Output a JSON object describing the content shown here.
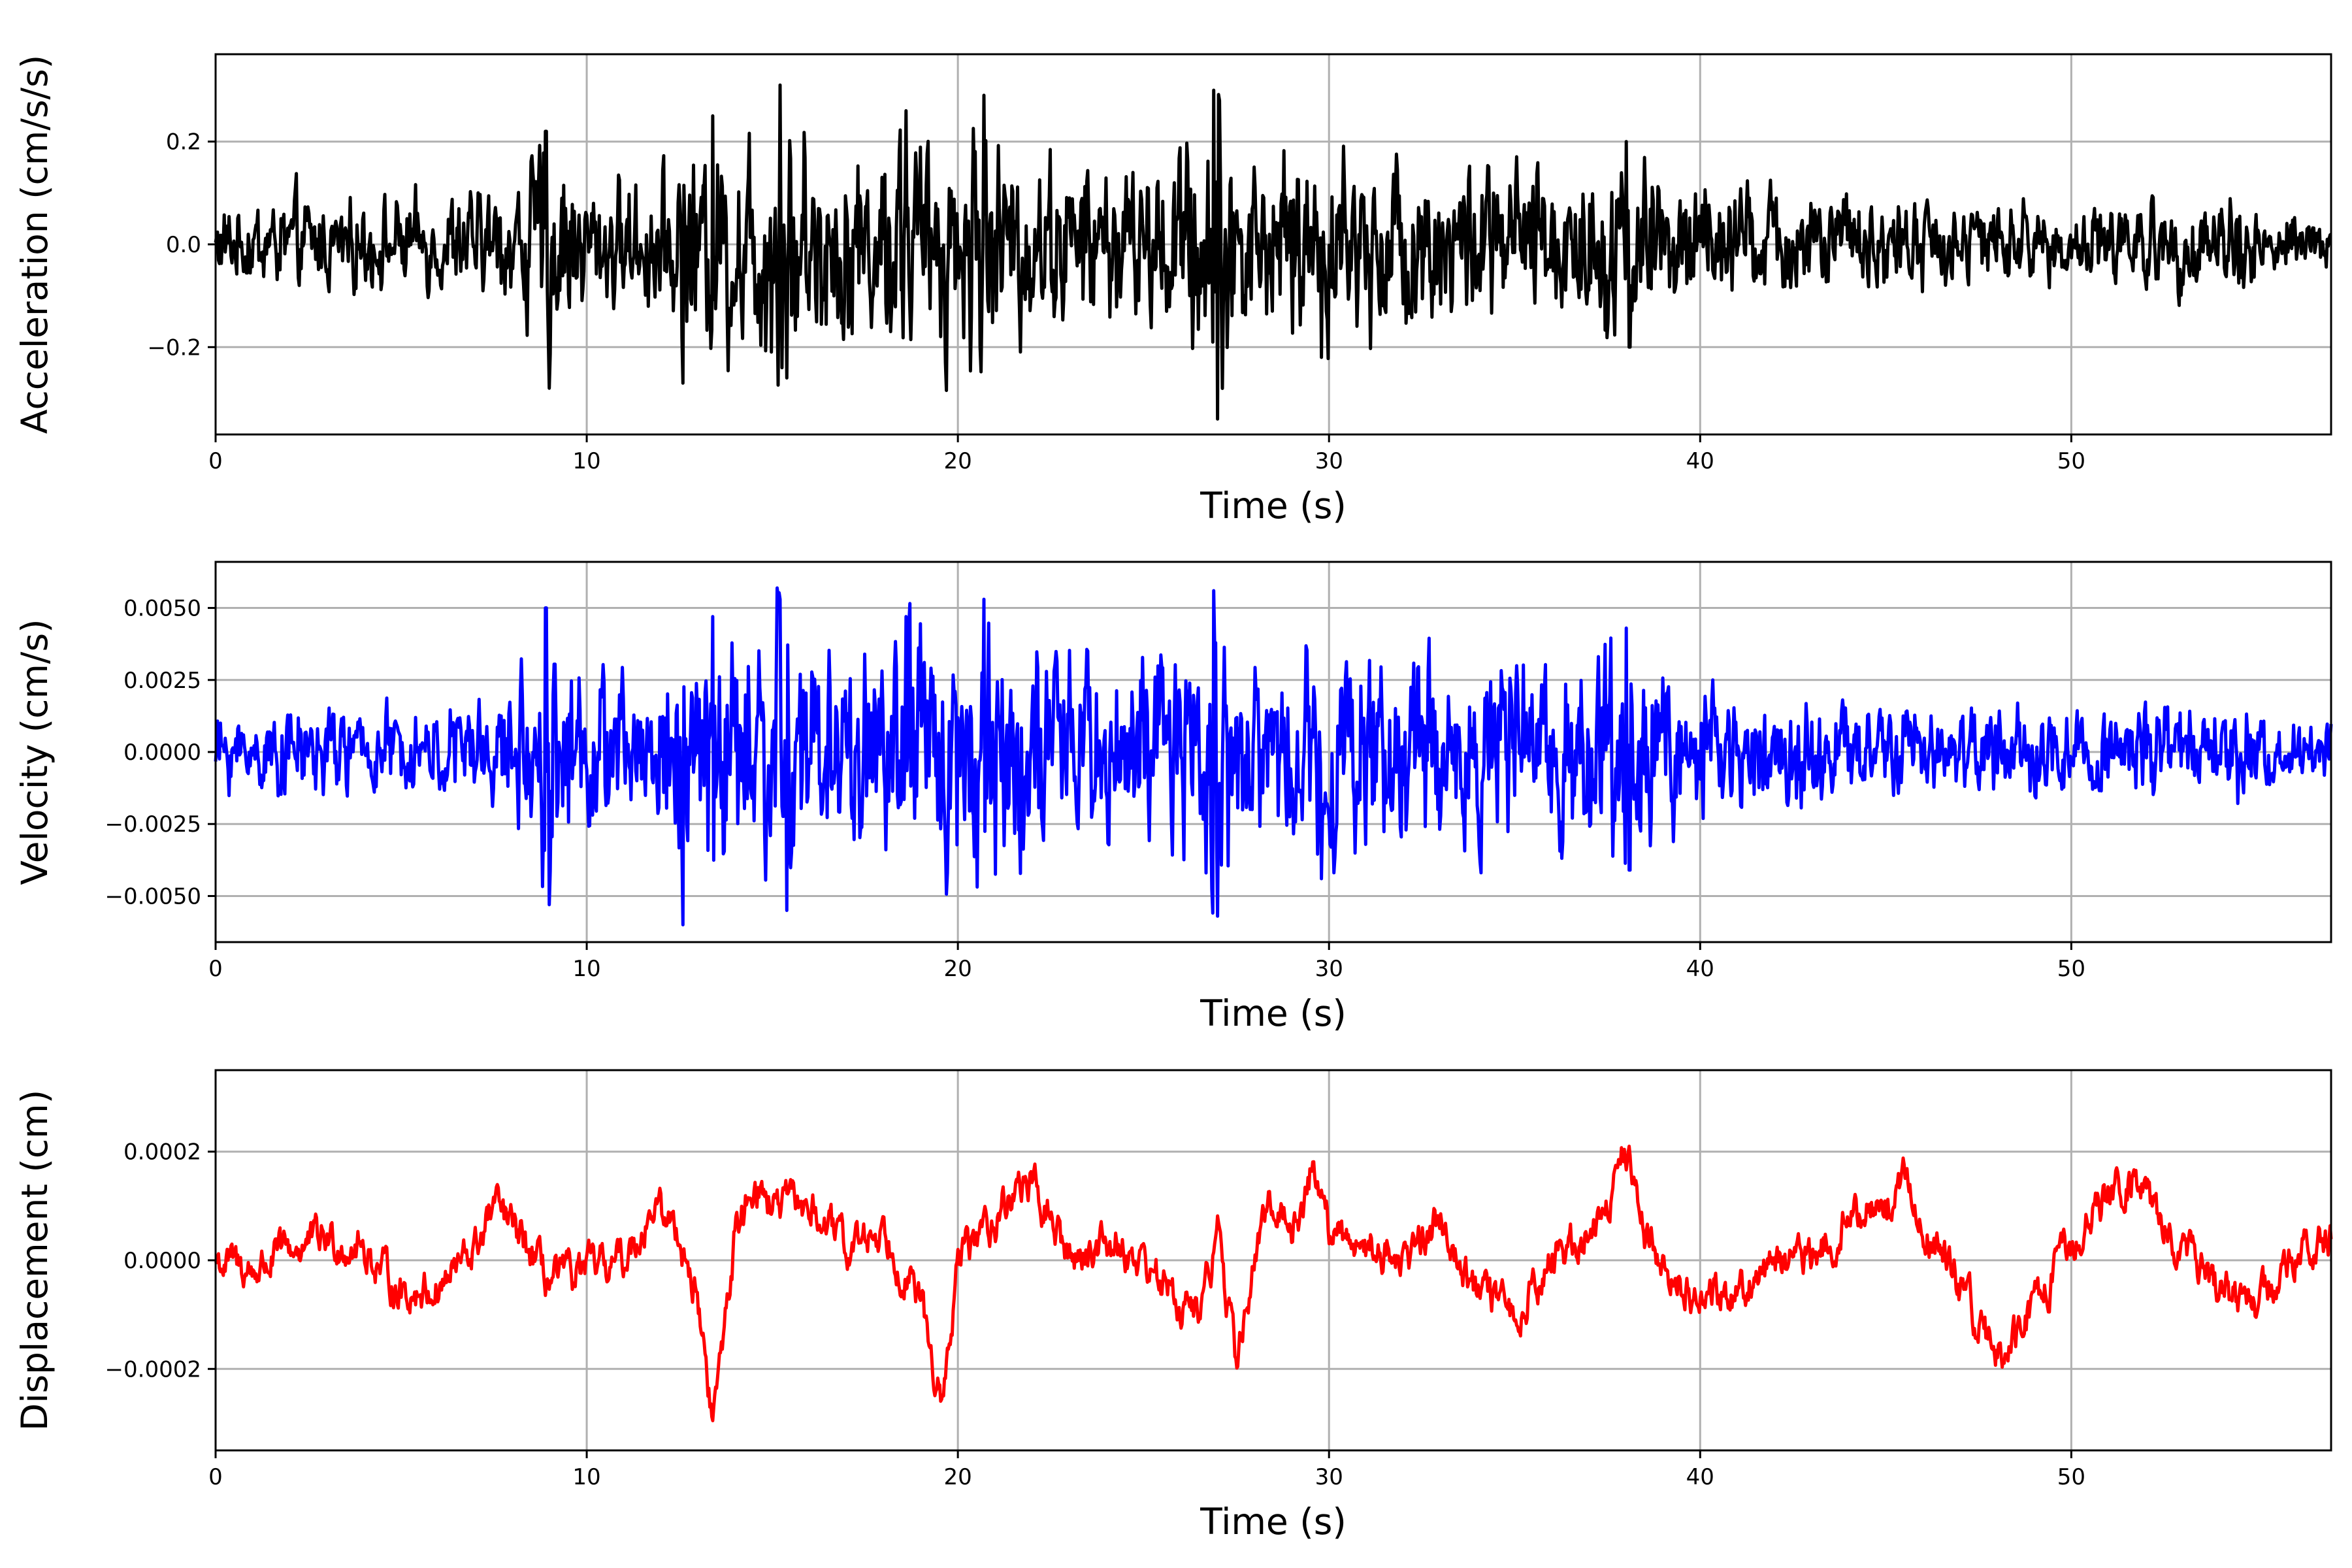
{
  "chart_data": [
    {
      "type": "line",
      "xlabel": "Time (s)",
      "ylabel": "Acceleration (cm/s/s)",
      "xlim": [
        0,
        57
      ],
      "ylim": [
        -0.37,
        0.37
      ],
      "xticks": [
        0,
        10,
        20,
        30,
        40,
        50
      ],
      "xtick_labels": [
        "0",
        "10",
        "20",
        "30",
        "40",
        "50"
      ],
      "yticks": [
        -0.2,
        0.0,
        0.2
      ],
      "ytick_labels": [
        "−0.2",
        "0.0",
        "0.2"
      ],
      "grid": true,
      "series": [
        {
          "color": "#000000",
          "envelope": {
            "t": [
              0,
              2,
              4,
              6,
              8,
              8.8,
              9.0,
              9.5,
              10,
              11,
              12,
              12.6,
              13,
              13.4,
              14,
              15,
              15.2,
              16,
              17,
              18,
              18.6,
              19,
              20,
              20.7,
              21,
              22,
              23,
              24,
              25,
              26,
              26.9,
              27.5,
              28,
              29,
              30,
              31,
              32,
              33,
              34,
              35,
              36,
              37,
              38,
              39,
              40,
              42,
              44,
              46,
              48,
              50,
              52,
              54,
              54.5,
              55,
              57
            ],
            "amp": [
              0.07,
              0.09,
              0.08,
              0.09,
              0.11,
              0.2,
              0.24,
              0.15,
              0.12,
              0.12,
              0.13,
              0.2,
              0.16,
              0.22,
              0.2,
              0.25,
              0.3,
              0.22,
              0.18,
              0.2,
              0.24,
              0.2,
              0.2,
              0.28,
              0.2,
              0.17,
              0.15,
              0.15,
              0.14,
              0.18,
              0.3,
              0.2,
              0.16,
              0.17,
              0.18,
              0.17,
              0.16,
              0.15,
              0.16,
              0.15,
              0.15,
              0.17,
              0.17,
              0.15,
              0.12,
              0.1,
              0.09,
              0.08,
              0.08,
              0.07,
              0.08,
              0.09,
              0.1,
              0.07,
              0.05
            ]
          },
          "spikes": [
            [
              8.9,
              0.22
            ],
            [
              9.0,
              -0.28
            ],
            [
              12.6,
              -0.27
            ],
            [
              13.4,
              0.25
            ],
            [
              15.2,
              0.31
            ],
            [
              15.4,
              -0.26
            ],
            [
              18.6,
              0.26
            ],
            [
              20.7,
              0.29
            ],
            [
              26.9,
              0.3
            ],
            [
              27.0,
              -0.34
            ],
            [
              29.8,
              -0.22
            ],
            [
              38.0,
              0.2
            ],
            [
              38.1,
              -0.2
            ]
          ]
        }
      ]
    },
    {
      "type": "line",
      "xlabel": "Time (s)",
      "ylabel": "Velocity (cm/s)",
      "xlim": [
        0,
        57
      ],
      "ylim": [
        -0.0066,
        0.0066
      ],
      "xticks": [
        0,
        10,
        20,
        30,
        40,
        50
      ],
      "xtick_labels": [
        "0",
        "10",
        "20",
        "30",
        "40",
        "50"
      ],
      "yticks": [
        -0.005,
        -0.0025,
        0.0,
        0.0025,
        0.005
      ],
      "ytick_labels": [
        "−0.0050",
        "−0.0025",
        "0.0000",
        "0.0025",
        "0.0050"
      ],
      "grid": true,
      "series": [
        {
          "color": "#0000ff",
          "envelope": {
            "t": [
              0,
              2,
              4,
              6,
              8,
              8.8,
              9.0,
              9.5,
              10,
              11,
              12,
              12.6,
              13,
              13.4,
              14,
              15,
              15.2,
              16,
              17,
              18,
              18.6,
              19,
              20,
              20.7,
              21,
              22,
              23,
              24,
              25,
              26,
              26.9,
              27.5,
              28,
              29,
              30,
              31,
              32,
              33,
              34,
              35,
              36,
              37,
              38,
              39,
              40,
              42,
              44,
              46,
              48,
              50,
              52,
              54,
              54.5,
              55,
              57
            ],
            "amp": [
              0.0012,
              0.0015,
              0.0014,
              0.0016,
              0.002,
              0.004,
              0.0048,
              0.003,
              0.0025,
              0.0025,
              0.0028,
              0.0045,
              0.0035,
              0.0045,
              0.0042,
              0.0048,
              0.0052,
              0.0042,
              0.0035,
              0.004,
              0.0045,
              0.004,
              0.0042,
              0.005,
              0.004,
              0.0035,
              0.0032,
              0.003,
              0.003,
              0.0035,
              0.0052,
              0.0038,
              0.0032,
              0.0034,
              0.0036,
              0.0034,
              0.0032,
              0.003,
              0.0032,
              0.003,
              0.003,
              0.0034,
              0.0034,
              0.003,
              0.0024,
              0.0018,
              0.0016,
              0.0014,
              0.0014,
              0.0013,
              0.0014,
              0.0016,
              0.002,
              0.0012,
              0.0009
            ]
          },
          "spikes": [
            [
              8.9,
              0.005
            ],
            [
              9.0,
              -0.0053
            ],
            [
              12.6,
              -0.006
            ],
            [
              13.4,
              0.0047
            ],
            [
              15.2,
              0.0053
            ],
            [
              15.4,
              -0.0055
            ],
            [
              18.6,
              0.0047
            ],
            [
              20.7,
              0.0053
            ],
            [
              26.9,
              0.0056
            ],
            [
              27.0,
              -0.0057
            ],
            [
              29.8,
              -0.0044
            ],
            [
              38.0,
              0.0043
            ],
            [
              38.1,
              -0.0041
            ]
          ]
        }
      ]
    },
    {
      "type": "line",
      "xlabel": "Time (s)",
      "ylabel": "Displacement (cm)",
      "xlim": [
        0,
        57
      ],
      "ylim": [
        -0.00035,
        0.00035
      ],
      "xticks": [
        0,
        10,
        20,
        30,
        40,
        50
      ],
      "xtick_labels": [
        "0",
        "10",
        "20",
        "30",
        "40",
        "50"
      ],
      "yticks": [
        -0.0002,
        0.0,
        0.0002
      ],
      "ytick_labels": [
        "−0.0002",
        "0.0000",
        "0.0002"
      ],
      "grid": true,
      "series": [
        {
          "color": "#ff0000",
          "trend": {
            "t": [
              0,
              1,
              2,
              3,
              4,
              5,
              6,
              7,
              7.5,
              8,
              9,
              10,
              11,
              11.8,
              12.5,
              13.0,
              13.4,
              14,
              14.5,
              15,
              16,
              17,
              18,
              19,
              19.6,
              20,
              21,
              21.8,
              22.5,
              23,
              24,
              25,
              26,
              26.5,
              27,
              27.5,
              28,
              28.5,
              29,
              29.6,
              30,
              31,
              32,
              33,
              34,
              35,
              36,
              37,
              37.5,
              38,
              38.5,
              39,
              40,
              41,
              42,
              43,
              44,
              45,
              45.6,
              46,
              47,
              47.8,
              48.3,
              49,
              50,
              51,
              51.8,
              52.5,
              53,
              54,
              55,
              56,
              57
            ],
            "value": [
              0.0,
              -2e-05,
              2e-05,
              4e-05,
              2e-05,
              -6e-05,
              -5e-05,
              2e-05,
              0.0001,
              6e-05,
              -4e-05,
              -2e-05,
              0.0,
              0.0001,
              5e-05,
              -8e-05,
              -0.0003,
              5e-05,
              0.00015,
              0.0001,
              0.0001,
              2e-05,
              6e-05,
              -8e-05,
              -0.00028,
              0.0,
              8e-05,
              0.00015,
              8e-05,
              0.0,
              4e-05,
              0.0,
              -8e-05,
              -0.0001,
              5e-05,
              -0.00019,
              0.0,
              0.00012,
              5e-05,
              0.00018,
              5e-05,
              3e-05,
              0.0,
              8e-05,
              -6e-05,
              -0.0001,
              0.0,
              5e-05,
              0.0001,
              0.00021,
              6e-05,
              0.0,
              -8e-05,
              -5e-05,
              0.0,
              0.0,
              8e-05,
              0.0001,
              0.00015,
              6e-05,
              -5e-05,
              -0.00015,
              -0.00017,
              -8e-05,
              3e-05,
              0.00012,
              0.00015,
              6e-05,
              2e-05,
              -6e-05,
              -8e-05,
              0.0,
              4e-05
            ]
          },
          "jitter": 4e-05
        }
      ]
    }
  ]
}
